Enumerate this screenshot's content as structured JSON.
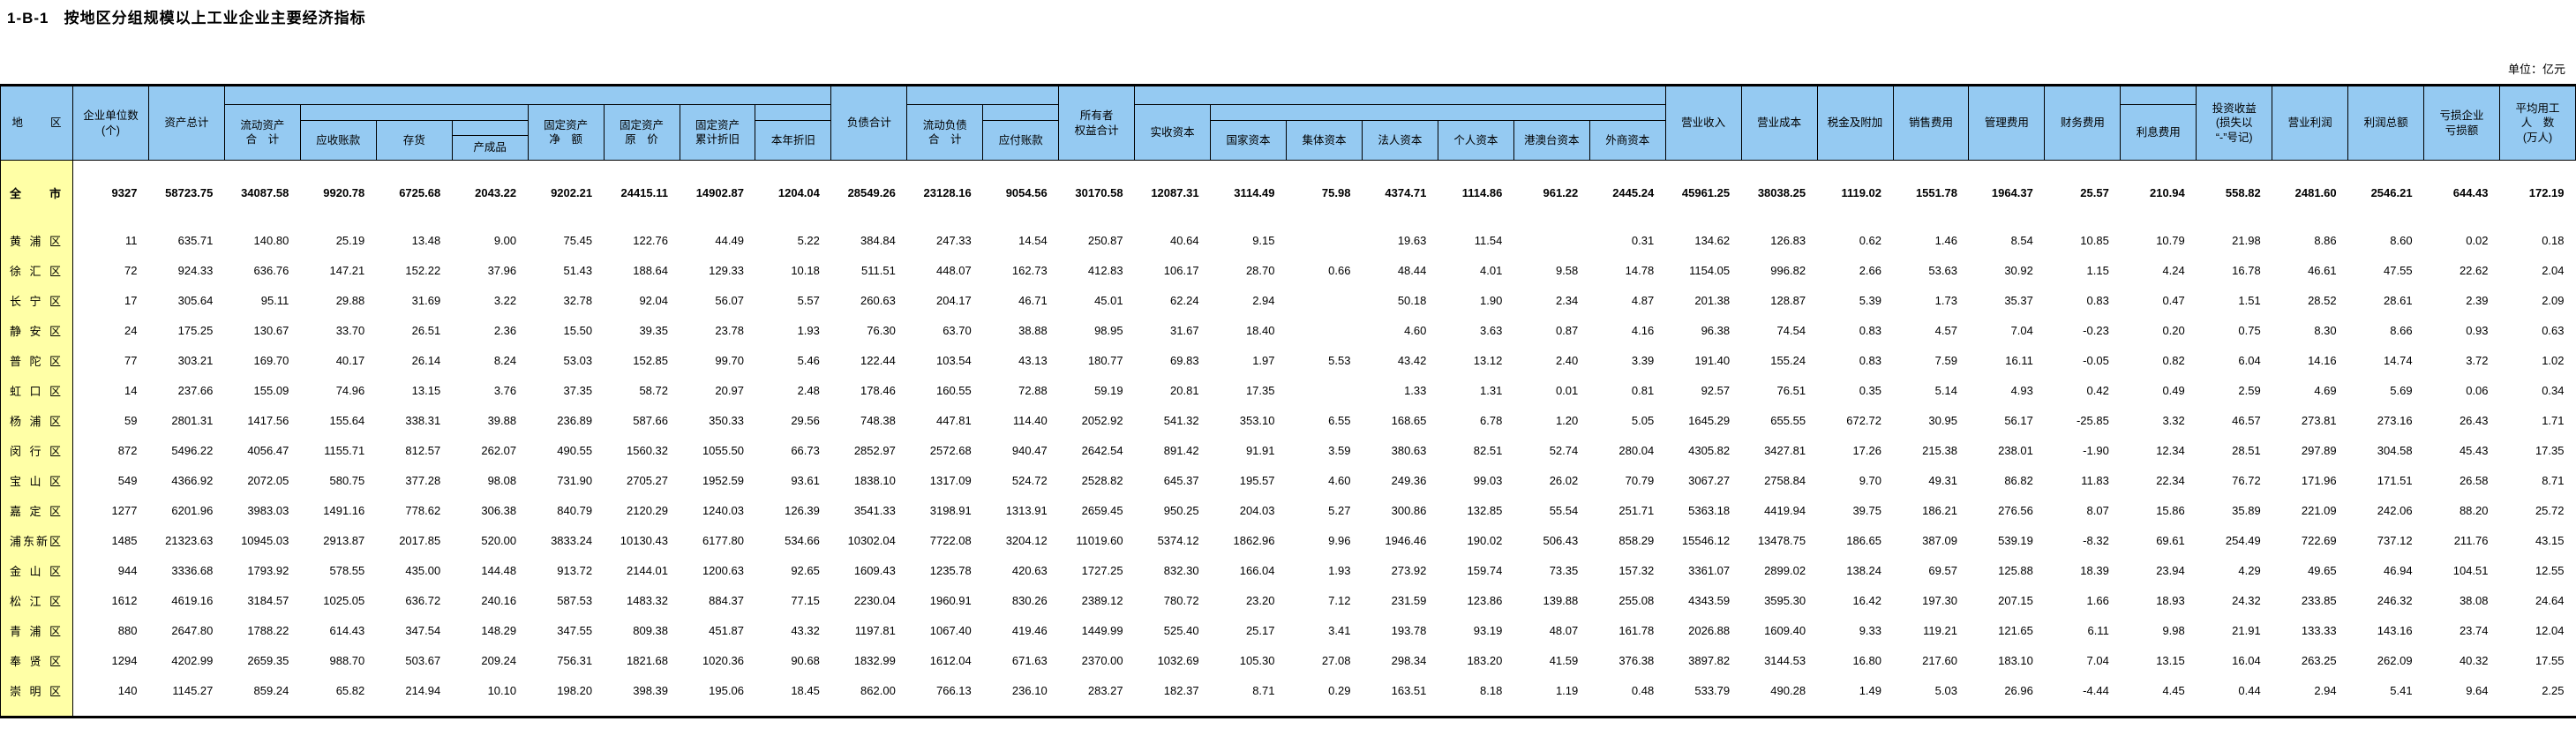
{
  "page": {
    "title": "1-B-1   按地区分组规模以上工业企业主要经济指标",
    "unit_note": "单位：亿元"
  },
  "theme": {
    "header_bg": "#95CAF2",
    "region_column_bg": "#FFFFA6",
    "border_color": "#000000"
  },
  "table": {
    "headers": {
      "region": "地　区",
      "enterprises": "企业单位数\n(个)",
      "assets_total": "资产总计",
      "current_assets": "流动资产\n合　计",
      "accounts_receivable": "应收账款",
      "inventory": "存货",
      "finished_goods": "产成品",
      "fixed_assets_net": "固定资产\n净　额",
      "fixed_assets_original": "固定资产\n原　价",
      "fixed_assets_depreciation": "固定资产\n累计折旧",
      "depreciation_current_year": "本年折旧",
      "liabilities_total": "负债合计",
      "current_liabilities": "流动负债\n合　计",
      "accounts_payable": "应付账款",
      "owners_equity": "所有者\n权益合计",
      "paid_in_capital": "实收资本",
      "state_capital": "国家资本",
      "collective_capital": "集体资本",
      "legal_person_capital": "法人资本",
      "personal_capital": "个人资本",
      "hk_mo_tw_capital": "港澳台资本",
      "foreign_capital": "外商资本",
      "operating_revenue": "营业收入",
      "operating_cost": "营业成本",
      "taxes_surcharges": "税金及附加",
      "selling_expenses": "销售费用",
      "admin_expenses": "管理费用",
      "financial_expenses": "财务费用",
      "interest_expenses": "利息费用",
      "investment_income": "投资收益\n(损失以\n“-”号记)",
      "operating_profit": "营业利润",
      "total_profit": "利润总额",
      "loss_of_loss_enterprises": "亏损企业\n亏损额",
      "avg_employees": "平均用工\n人　数\n(万人)"
    },
    "rows": [
      {
        "region": "全市",
        "bold": true,
        "values": [
          "9327",
          "58723.75",
          "34087.58",
          "9920.78",
          "6725.68",
          "2043.22",
          "9202.21",
          "24415.11",
          "14902.87",
          "1204.04",
          "28549.26",
          "23128.16",
          "9054.56",
          "30170.58",
          "12087.31",
          "3114.49",
          "75.98",
          "4374.71",
          "1114.86",
          "961.22",
          "2445.24",
          "45961.25",
          "38038.25",
          "1119.02",
          "1551.78",
          "1964.37",
          "25.57",
          "210.94",
          "558.82",
          "2481.60",
          "2546.21",
          "644.43",
          "172.19"
        ]
      },
      {
        "region": "黄浦区",
        "bold": false,
        "values": [
          "11",
          "635.71",
          "140.80",
          "25.19",
          "13.48",
          "9.00",
          "75.45",
          "122.76",
          "44.49",
          "5.22",
          "384.84",
          "247.33",
          "14.54",
          "250.87",
          "40.64",
          "9.15",
          "",
          "19.63",
          "11.54",
          "",
          "0.31",
          "134.62",
          "126.83",
          "0.62",
          "1.46",
          "8.54",
          "10.85",
          "10.79",
          "21.98",
          "8.86",
          "8.60",
          "0.02",
          "0.18"
        ]
      },
      {
        "region": "徐汇区",
        "bold": false,
        "values": [
          "72",
          "924.33",
          "636.76",
          "147.21",
          "152.22",
          "37.96",
          "51.43",
          "188.64",
          "129.33",
          "10.18",
          "511.51",
          "448.07",
          "162.73",
          "412.83",
          "106.17",
          "28.70",
          "0.66",
          "48.44",
          "4.01",
          "9.58",
          "14.78",
          "1154.05",
          "996.82",
          "2.66",
          "53.63",
          "30.92",
          "1.15",
          "4.24",
          "16.78",
          "46.61",
          "47.55",
          "22.62",
          "2.04"
        ]
      },
      {
        "region": "长宁区",
        "bold": false,
        "values": [
          "17",
          "305.64",
          "95.11",
          "29.88",
          "31.69",
          "3.22",
          "32.78",
          "92.04",
          "56.07",
          "5.57",
          "260.63",
          "204.17",
          "46.71",
          "45.01",
          "62.24",
          "2.94",
          "",
          "50.18",
          "1.90",
          "2.34",
          "4.87",
          "201.38",
          "128.87",
          "5.39",
          "1.73",
          "35.37",
          "0.83",
          "0.47",
          "1.51",
          "28.52",
          "28.61",
          "2.39",
          "2.09"
        ]
      },
      {
        "region": "静安区",
        "bold": false,
        "values": [
          "24",
          "175.25",
          "130.67",
          "33.70",
          "26.51",
          "2.36",
          "15.50",
          "39.35",
          "23.78",
          "1.93",
          "76.30",
          "63.70",
          "38.88",
          "98.95",
          "31.67",
          "18.40",
          "",
          "4.60",
          "3.63",
          "0.87",
          "4.16",
          "96.38",
          "74.54",
          "0.83",
          "4.57",
          "7.04",
          "-0.23",
          "0.20",
          "0.75",
          "8.30",
          "8.66",
          "0.93",
          "0.63"
        ]
      },
      {
        "region": "普陀区",
        "bold": false,
        "values": [
          "77",
          "303.21",
          "169.70",
          "40.17",
          "26.14",
          "8.24",
          "53.03",
          "152.85",
          "99.70",
          "5.46",
          "122.44",
          "103.54",
          "43.13",
          "180.77",
          "69.83",
          "1.97",
          "5.53",
          "43.42",
          "13.12",
          "2.40",
          "3.39",
          "191.40",
          "155.24",
          "0.83",
          "7.59",
          "16.11",
          "-0.05",
          "0.82",
          "6.04",
          "14.16",
          "14.74",
          "3.72",
          "1.02"
        ]
      },
      {
        "region": "虹口区",
        "bold": false,
        "values": [
          "14",
          "237.66",
          "155.09",
          "74.96",
          "13.15",
          "3.76",
          "37.35",
          "58.72",
          "20.97",
          "2.48",
          "178.46",
          "160.55",
          "72.88",
          "59.19",
          "20.81",
          "17.35",
          "",
          "1.33",
          "1.31",
          "0.01",
          "0.81",
          "92.57",
          "76.51",
          "0.35",
          "5.14",
          "4.93",
          "0.42",
          "0.49",
          "2.59",
          "4.69",
          "5.69",
          "0.06",
          "0.34"
        ]
      },
      {
        "region": "杨浦区",
        "bold": false,
        "values": [
          "59",
          "2801.31",
          "1417.56",
          "155.64",
          "338.31",
          "39.88",
          "236.89",
          "587.66",
          "350.33",
          "29.56",
          "748.38",
          "447.81",
          "114.40",
          "2052.92",
          "541.32",
          "353.10",
          "6.55",
          "168.65",
          "6.78",
          "1.20",
          "5.05",
          "1645.29",
          "655.55",
          "672.72",
          "30.95",
          "56.17",
          "-25.85",
          "3.32",
          "46.57",
          "273.81",
          "273.16",
          "26.43",
          "1.71"
        ]
      },
      {
        "region": "闵行区",
        "bold": false,
        "values": [
          "872",
          "5496.22",
          "4056.47",
          "1155.71",
          "812.57",
          "262.07",
          "490.55",
          "1560.32",
          "1055.50",
          "66.73",
          "2852.97",
          "2572.68",
          "940.47",
          "2642.54",
          "891.42",
          "91.91",
          "3.59",
          "380.63",
          "82.51",
          "52.74",
          "280.04",
          "4305.82",
          "3427.81",
          "17.26",
          "215.38",
          "238.01",
          "-1.90",
          "12.34",
          "28.51",
          "297.89",
          "304.58",
          "45.43",
          "17.35"
        ]
      },
      {
        "region": "宝山区",
        "bold": false,
        "values": [
          "549",
          "4366.92",
          "2072.05",
          "580.75",
          "377.28",
          "98.08",
          "731.90",
          "2705.27",
          "1952.59",
          "93.61",
          "1838.10",
          "1317.09",
          "524.72",
          "2528.82",
          "645.37",
          "195.57",
          "4.60",
          "249.36",
          "99.03",
          "26.02",
          "70.79",
          "3067.27",
          "2758.84",
          "9.70",
          "49.31",
          "86.82",
          "11.83",
          "22.34",
          "76.72",
          "171.96",
          "171.51",
          "26.58",
          "8.71"
        ]
      },
      {
        "region": "嘉定区",
        "bold": false,
        "values": [
          "1277",
          "6201.96",
          "3983.03",
          "1491.16",
          "778.62",
          "306.38",
          "840.79",
          "2120.29",
          "1240.03",
          "126.39",
          "3541.33",
          "3198.91",
          "1313.91",
          "2659.45",
          "950.25",
          "204.03",
          "5.27",
          "300.86",
          "132.85",
          "55.54",
          "251.71",
          "5363.18",
          "4419.94",
          "39.75",
          "186.21",
          "276.56",
          "8.07",
          "15.86",
          "35.89",
          "221.09",
          "242.06",
          "88.20",
          "25.72"
        ]
      },
      {
        "region": "浦东新区",
        "bold": false,
        "values": [
          "1485",
          "21323.63",
          "10945.03",
          "2913.87",
          "2017.85",
          "520.00",
          "3833.24",
          "10130.43",
          "6177.80",
          "534.66",
          "10302.04",
          "7722.08",
          "3204.12",
          "11019.60",
          "5374.12",
          "1862.96",
          "9.96",
          "1946.46",
          "190.02",
          "506.43",
          "858.29",
          "15546.12",
          "13478.75",
          "186.65",
          "387.09",
          "539.19",
          "-8.32",
          "69.61",
          "254.49",
          "722.69",
          "737.12",
          "211.76",
          "43.15"
        ]
      },
      {
        "region": "金山区",
        "bold": false,
        "values": [
          "944",
          "3336.68",
          "1793.92",
          "578.55",
          "435.00",
          "144.48",
          "913.72",
          "2144.01",
          "1200.63",
          "92.65",
          "1609.43",
          "1235.78",
          "420.63",
          "1727.25",
          "832.30",
          "166.04",
          "1.93",
          "273.92",
          "159.74",
          "73.35",
          "157.32",
          "3361.07",
          "2899.02",
          "138.24",
          "69.57",
          "125.88",
          "18.39",
          "23.94",
          "4.29",
          "49.65",
          "46.94",
          "104.51",
          "12.55"
        ]
      },
      {
        "region": "松江区",
        "bold": false,
        "values": [
          "1612",
          "4619.16",
          "3184.57",
          "1025.05",
          "636.72",
          "240.16",
          "587.53",
          "1483.32",
          "884.37",
          "77.15",
          "2230.04",
          "1960.91",
          "830.26",
          "2389.12",
          "780.72",
          "23.20",
          "7.12",
          "231.59",
          "123.86",
          "139.88",
          "255.08",
          "4343.59",
          "3595.30",
          "16.42",
          "197.30",
          "207.15",
          "1.66",
          "18.93",
          "24.32",
          "233.85",
          "246.32",
          "38.08",
          "24.64"
        ]
      },
      {
        "region": "青浦区",
        "bold": false,
        "values": [
          "880",
          "2647.80",
          "1788.22",
          "614.43",
          "347.54",
          "148.29",
          "347.55",
          "809.38",
          "451.87",
          "43.32",
          "1197.81",
          "1067.40",
          "419.46",
          "1449.99",
          "525.40",
          "25.17",
          "3.41",
          "193.78",
          "93.19",
          "48.07",
          "161.78",
          "2026.88",
          "1609.40",
          "9.33",
          "119.21",
          "121.65",
          "6.11",
          "9.98",
          "21.91",
          "133.33",
          "143.16",
          "23.74",
          "12.04"
        ]
      },
      {
        "region": "奉贤区",
        "bold": false,
        "values": [
          "1294",
          "4202.99",
          "2659.35",
          "988.70",
          "503.67",
          "209.24",
          "756.31",
          "1821.68",
          "1020.36",
          "90.68",
          "1832.99",
          "1612.04",
          "671.63",
          "2370.00",
          "1032.69",
          "105.30",
          "27.08",
          "298.34",
          "183.20",
          "41.59",
          "376.38",
          "3897.82",
          "3144.53",
          "16.80",
          "217.60",
          "183.10",
          "7.04",
          "13.15",
          "16.04",
          "263.25",
          "262.09",
          "40.32",
          "17.55"
        ]
      },
      {
        "region": "崇明区",
        "bold": false,
        "values": [
          "140",
          "1145.27",
          "859.24",
          "65.82",
          "214.94",
          "10.10",
          "198.20",
          "398.39",
          "195.06",
          "18.45",
          "862.00",
          "766.13",
          "236.10",
          "283.27",
          "182.37",
          "8.71",
          "0.29",
          "163.51",
          "8.18",
          "1.19",
          "0.48",
          "533.79",
          "490.28",
          "1.49",
          "5.03",
          "26.96",
          "-4.44",
          "4.45",
          "0.44",
          "2.94",
          "5.41",
          "9.64",
          "2.25"
        ]
      }
    ]
  }
}
